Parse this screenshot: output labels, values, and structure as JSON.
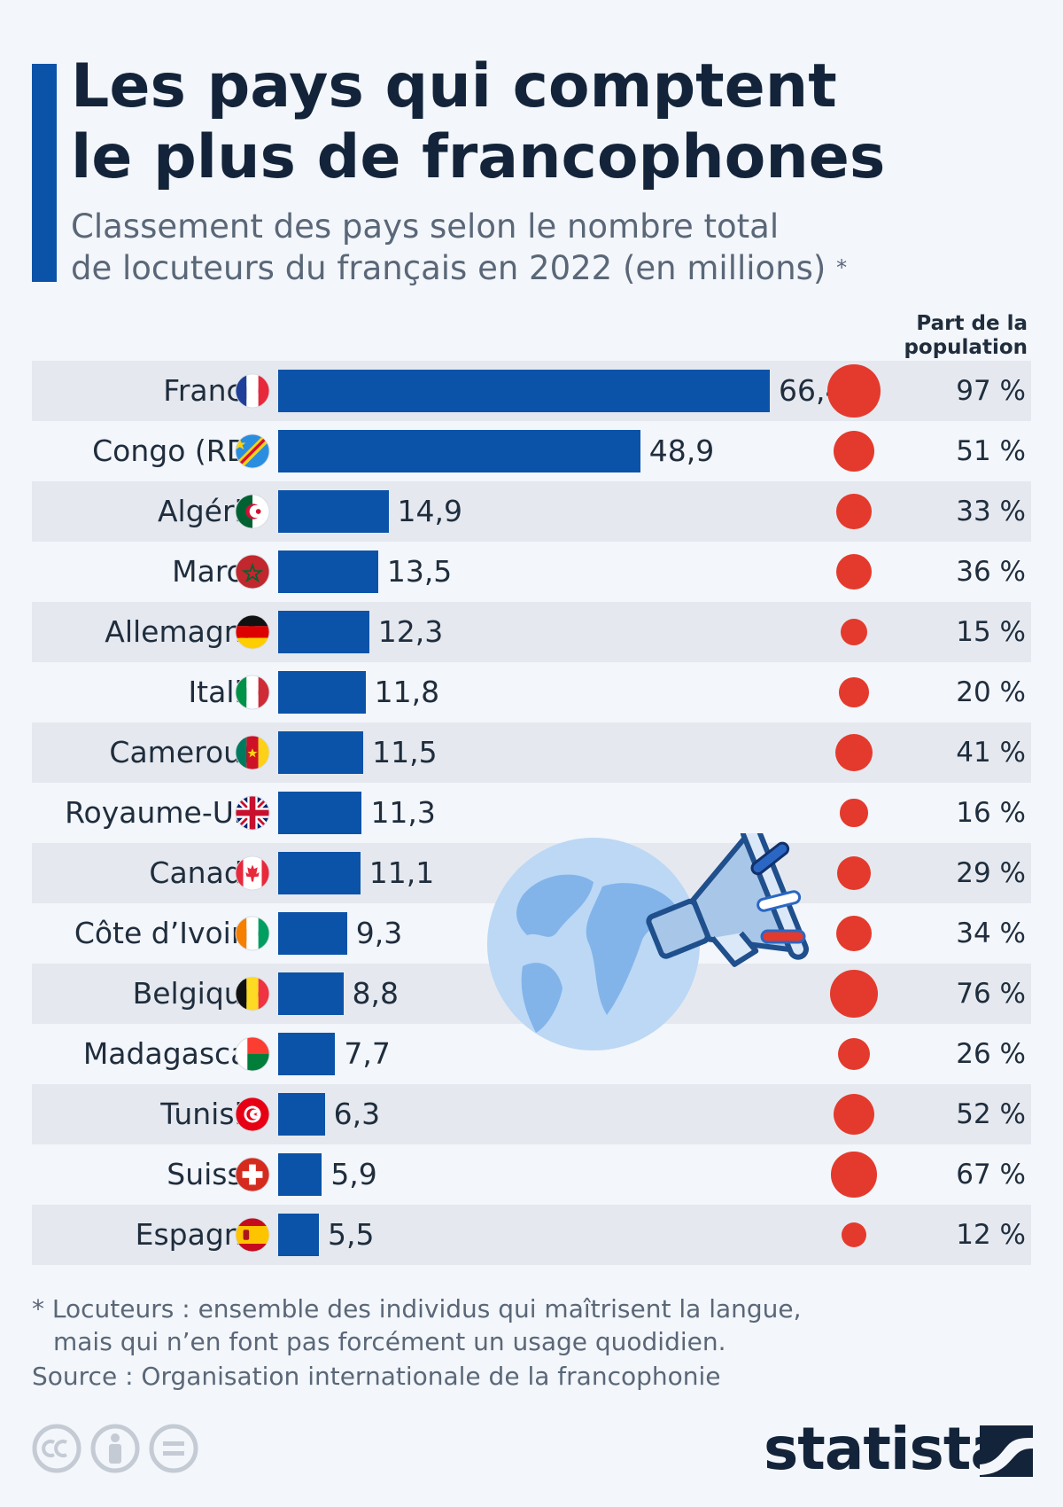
{
  "title_line1": "Les pays qui comptent",
  "title_line2": "le plus de francophones",
  "subtitle_line1": "Classement des pays selon le nombre total",
  "subtitle_line2": "de locuteurs du français en 2022 (en millions)",
  "subtitle_star": "*",
  "share_header_line1": "Part de la",
  "share_header_line2": "population",
  "note_line1": "* Locuteurs : ensemble des individus qui maîtrisent la langue,",
  "note_line2": "mais qui n’en font pas forcément un usage quodidien.",
  "source": "Source : Organisation internationale de la francophonie",
  "brand": "statista",
  "colors": {
    "bar": "#0b53a8",
    "dot": "#e43a2d",
    "shade": "#e5e9ef",
    "background": "#f3f6fa"
  },
  "chart_data": {
    "type": "bar",
    "orientation": "horizontal",
    "title": "Les pays qui comptent le plus de francophones",
    "unit": "millions",
    "categories": [
      "France",
      "Congo (RD)",
      "Algérie",
      "Maroc",
      "Allemagne",
      "Italie",
      "Cameroun",
      "Royaume-Uni",
      "Canada",
      "Côte d’Ivoire",
      "Belgique",
      "Madagascar",
      "Tunisie",
      "Suisse",
      "Espagne"
    ],
    "values": [
      66.4,
      48.9,
      14.9,
      13.5,
      12.3,
      11.8,
      11.5,
      11.3,
      11.1,
      9.3,
      8.8,
      7.7,
      6.3,
      5.9,
      5.5
    ],
    "value_labels": [
      "66,4",
      "48,9",
      "14,9",
      "13,5",
      "12,3",
      "11,8",
      "11,5",
      "11,3",
      "11,1",
      "9,3",
      "8,8",
      "7,7",
      "6,3",
      "5,9",
      "5,5"
    ],
    "population_share": [
      97,
      51,
      33,
      36,
      15,
      20,
      41,
      16,
      29,
      34,
      76,
      26,
      52,
      67,
      12
    ],
    "population_share_labels": [
      "97 %",
      "51 %",
      "33 %",
      "36 %",
      "15 %",
      "20 %",
      "41 %",
      "16 %",
      "29 %",
      "34 %",
      "76 %",
      "26 %",
      "52 %",
      "67 %",
      "12 %"
    ],
    "flag_icons": [
      "flag-france-icon",
      "flag-congo-rd-icon",
      "flag-algerie-icon",
      "flag-maroc-icon",
      "flag-allemagne-icon",
      "flag-italie-icon",
      "flag-cameroun-icon",
      "flag-royaume-uni-icon",
      "flag-canada-icon",
      "flag-cote-divoire-icon",
      "flag-belgique-icon",
      "flag-madagascar-icon",
      "flag-tunisie-icon",
      "flag-suisse-icon",
      "flag-espagne-icon"
    ]
  }
}
